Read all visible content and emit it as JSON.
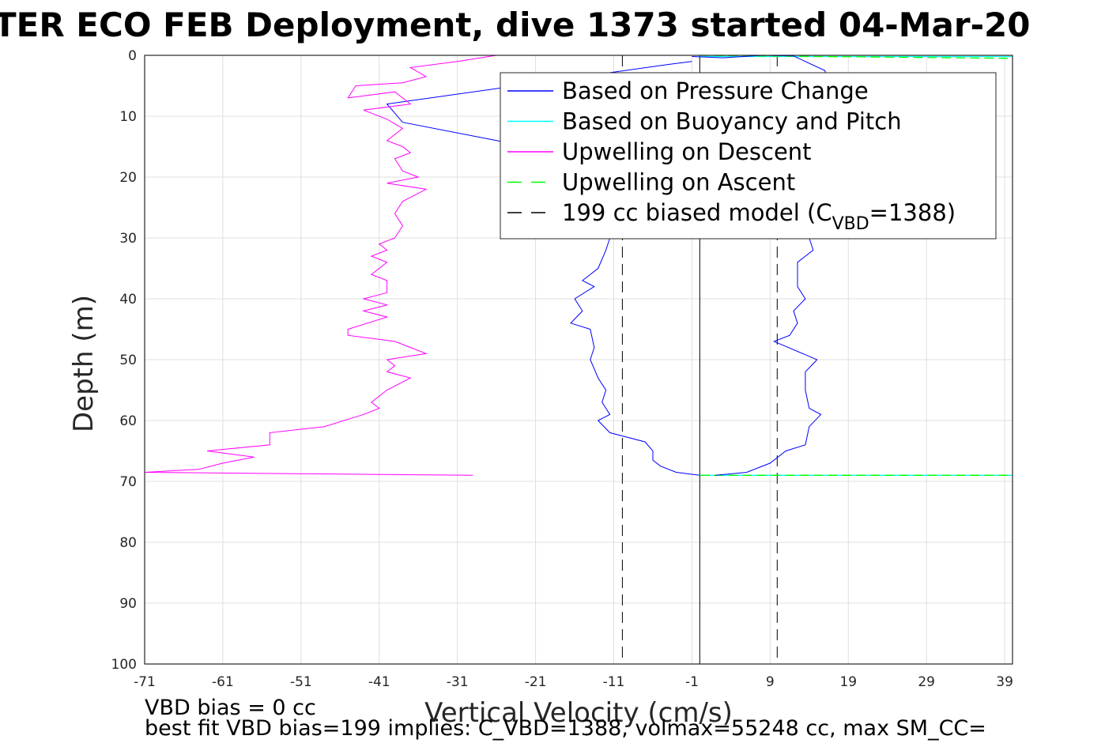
{
  "chart_data": {
    "type": "line",
    "title": "TER ECO FEB Deployment, dive 1373 started 04-Mar-20",
    "xlabel": "Vertical Velocity (cm/s)",
    "ylabel": "Depth (m)",
    "xlim": [
      -71,
      40
    ],
    "ylim": [
      0,
      100
    ],
    "y_reversed": true,
    "grid": true,
    "legend_position": "top-right",
    "xticks": [
      -71,
      -61,
      -51,
      -41,
      -31,
      -21,
      -11,
      -1,
      9,
      19,
      29,
      39
    ],
    "yticks": [
      0,
      10,
      20,
      30,
      40,
      50,
      60,
      70,
      80,
      90,
      100
    ],
    "legend": [
      {
        "label": "Based on Pressure Change",
        "color": "#0000ff",
        "style": "solid"
      },
      {
        "label": "Based on Buoyancy and Pitch",
        "color": "#00ffff",
        "style": "solid"
      },
      {
        "label": "Upwelling on Descent",
        "color": "#ff00ff",
        "style": "solid"
      },
      {
        "label": "Upwelling on Ascent",
        "color": "#00ff00",
        "style": "dashed"
      },
      {
        "label": "199 cc biased model (C",
        "sub": "VBD",
        "suffix": "=1388)",
        "color": "#000000",
        "style": "dashed"
      }
    ],
    "series": [
      {
        "name": "Based on Pressure Change",
        "color": "#0000ff",
        "points": [
          [
            -1,
            0.2
          ],
          [
            3,
            0.4
          ],
          [
            8,
            0
          ],
          [
            12,
            0.1
          ],
          [
            16,
            2.5
          ],
          [
            17,
            6
          ],
          [
            16.5,
            10
          ],
          [
            17,
            14
          ],
          [
            16,
            18
          ],
          [
            16.5,
            22
          ],
          [
            15.5,
            26
          ],
          [
            14,
            30
          ],
          [
            14.5,
            32
          ],
          [
            12.5,
            34
          ],
          [
            12.5,
            38
          ],
          [
            13.5,
            40
          ],
          [
            12,
            42
          ],
          [
            12.5,
            44
          ],
          [
            11.5,
            46
          ],
          [
            9.5,
            47
          ],
          [
            15,
            50
          ],
          [
            13.5,
            52
          ],
          [
            13.5,
            55
          ],
          [
            14,
            58
          ],
          [
            15.5,
            59
          ],
          [
            14,
            61
          ],
          [
            13.5,
            64
          ],
          [
            11,
            65
          ],
          [
            9,
            67
          ],
          [
            6,
            68.5
          ],
          [
            2,
            69
          ]
        ],
        "descent_points": [
          [
            -1,
            1
          ],
          [
            -4,
            1.5
          ],
          [
            -40,
            8
          ],
          [
            -38,
            11
          ],
          [
            -26,
            14
          ],
          [
            -18,
            16
          ],
          [
            -14,
            20
          ],
          [
            -12,
            25
          ],
          [
            -11.5,
            30
          ],
          [
            -12,
            32
          ],
          [
            -13,
            35
          ],
          [
            -15,
            37
          ],
          [
            -13.5,
            38
          ],
          [
            -16,
            40
          ],
          [
            -15,
            42
          ],
          [
            -16.5,
            44
          ],
          [
            -14,
            45
          ],
          [
            -13.5,
            48
          ],
          [
            -14,
            50
          ],
          [
            -13,
            53
          ],
          [
            -12,
            55
          ],
          [
            -12.5,
            57
          ],
          [
            -11.5,
            59
          ],
          [
            -13,
            60
          ],
          [
            -11.5,
            62
          ],
          [
            -7,
            63.5
          ],
          [
            -6,
            65
          ],
          [
            -6,
            66.5
          ],
          [
            -5,
            67.5
          ],
          [
            -3,
            68.5
          ],
          [
            0,
            69
          ]
        ]
      },
      {
        "name": "Based on Buoyancy and Pitch",
        "color": "#00ffff",
        "points": [
          [
            0,
            0.2
          ],
          [
            40,
            0.2
          ],
          [
            0,
            69
          ],
          [
            40,
            69
          ]
        ]
      },
      {
        "name": "Upwelling on Descent",
        "color": "#ff00ff",
        "points": [
          [
            -26,
            0
          ],
          [
            -31,
            1
          ],
          [
            -37,
            2
          ],
          [
            -35,
            3.5
          ],
          [
            -38,
            4.5
          ],
          [
            -44,
            5
          ],
          [
            -45,
            7
          ],
          [
            -39,
            6
          ],
          [
            -37,
            8
          ],
          [
            -43,
            9
          ],
          [
            -40,
            10.5
          ],
          [
            -38,
            12
          ],
          [
            -40,
            14
          ],
          [
            -38,
            15
          ],
          [
            -37,
            16
          ],
          [
            -39,
            17
          ],
          [
            -38,
            19
          ],
          [
            -36,
            20
          ],
          [
            -40,
            21
          ],
          [
            -35,
            22
          ],
          [
            -38,
            24
          ],
          [
            -39,
            26
          ],
          [
            -38,
            28
          ],
          [
            -39,
            30
          ],
          [
            -41,
            31
          ],
          [
            -40,
            32
          ],
          [
            -42,
            33
          ],
          [
            -40,
            34
          ],
          [
            -42,
            36
          ],
          [
            -40,
            37
          ],
          [
            -40,
            39
          ],
          [
            -43,
            40
          ],
          [
            -40,
            41
          ],
          [
            -43,
            42
          ],
          [
            -40,
            43
          ],
          [
            -45,
            45
          ],
          [
            -45,
            46
          ],
          [
            -39,
            47
          ],
          [
            -37,
            48
          ],
          [
            -35,
            49
          ],
          [
            -40,
            50
          ],
          [
            -39,
            51
          ],
          [
            -40,
            52
          ],
          [
            -37,
            53
          ],
          [
            -40,
            55
          ],
          [
            -42,
            57
          ],
          [
            -41,
            58
          ],
          [
            -43,
            59
          ],
          [
            -48,
            61
          ],
          [
            -55,
            62
          ],
          [
            -55,
            64
          ],
          [
            -63,
            65
          ],
          [
            -57,
            66
          ],
          [
            -61,
            67
          ],
          [
            -64,
            68
          ],
          [
            -71,
            68.5
          ],
          [
            -29,
            69
          ]
        ]
      },
      {
        "name": "Upwelling on Ascent",
        "color": "#00ff00",
        "style": "dashed",
        "points": [
          [
            0,
            0
          ],
          [
            40,
            0.5
          ],
          [
            0,
            69
          ],
          [
            40,
            69
          ]
        ]
      },
      {
        "name": "199 cc biased model",
        "color": "#000000",
        "style": "dashed",
        "points": [
          [
            -9.9,
            0
          ],
          [
            -9.9,
            100
          ],
          [
            9.9,
            0
          ],
          [
            9.9,
            100
          ]
        ]
      }
    ],
    "zero_line": {
      "x": 0,
      "from": 0,
      "to": 100
    }
  },
  "footer": {
    "line1": "VBD bias = 0 cc",
    "line2": "best fit VBD bias=199 implies: C_VBD=1388, volmax=55248 cc, max SM_CC="
  }
}
